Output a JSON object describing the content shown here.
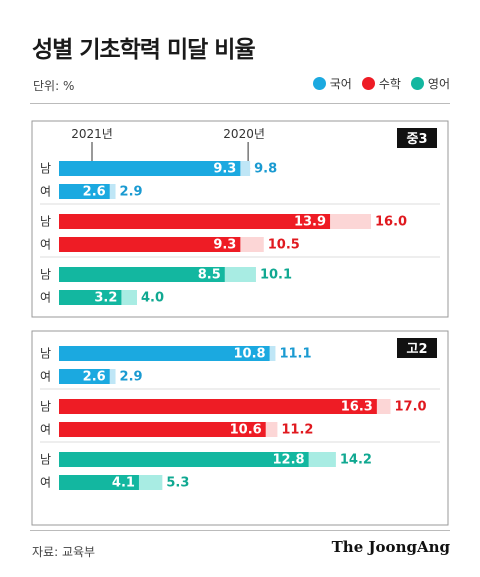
{
  "title": "성별 기초학력 미달 비율",
  "unit": "단위: %",
  "legend": [
    {
      "label": "국어",
      "color": "#1ba9e0"
    },
    {
      "label": "수학",
      "color": "#ee1c25"
    },
    {
      "label": "영어",
      "color": "#13b7a0"
    }
  ],
  "source": "자료: 교육부",
  "brand": "The JoongAng",
  "chart_data": {
    "type": "bar",
    "orientation": "horizontal",
    "series_years": [
      "2021년",
      "2020년"
    ],
    "groups": [
      {
        "name": "중3",
        "subjects": [
          {
            "subject": "국어",
            "rows": [
              {
                "label": "남",
                "v2021": 9.3,
                "v2020": 9.8
              },
              {
                "label": "여",
                "v2021": 2.6,
                "v2020": 2.9
              }
            ]
          },
          {
            "subject": "수학",
            "rows": [
              {
                "label": "남",
                "v2021": 13.9,
                "v2020": 16.0
              },
              {
                "label": "여",
                "v2021": 9.3,
                "v2020": 10.5
              }
            ]
          },
          {
            "subject": "영어",
            "rows": [
              {
                "label": "남",
                "v2021": 8.5,
                "v2020": 10.1
              },
              {
                "label": "여",
                "v2021": 3.2,
                "v2020": 4.0
              }
            ]
          }
        ]
      },
      {
        "name": "고2",
        "subjects": [
          {
            "subject": "국어",
            "rows": [
              {
                "label": "남",
                "v2021": 10.8,
                "v2020": 11.1
              },
              {
                "label": "여",
                "v2021": 2.6,
                "v2020": 2.9
              }
            ]
          },
          {
            "subject": "수학",
            "rows": [
              {
                "label": "남",
                "v2021": 16.3,
                "v2020": 17.0
              },
              {
                "label": "여",
                "v2021": 10.6,
                "v2020": 11.2
              }
            ]
          },
          {
            "subject": "영어",
            "rows": [
              {
                "label": "남",
                "v2021": 12.8,
                "v2020": 14.2
              },
              {
                "label": "여",
                "v2021": 4.1,
                "v2020": 5.3
              }
            ]
          }
        ]
      }
    ]
  }
}
